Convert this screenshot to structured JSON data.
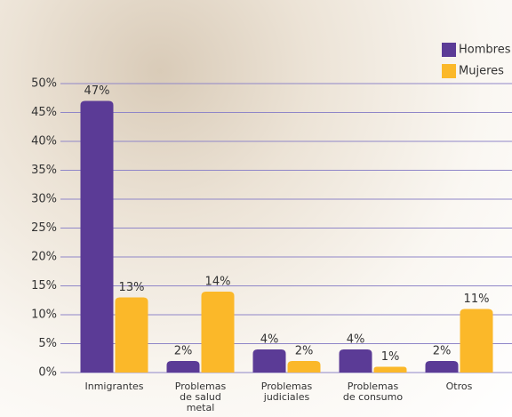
{
  "chart_data": {
    "type": "bar",
    "categories": [
      "Inmigrantes",
      "Problemas de salud metal",
      "Problemas judiciales",
      "Problemas de consumo",
      "Otros"
    ],
    "series": [
      {
        "name": "Hombres",
        "color": "#5b3b96",
        "values": [
          47,
          2,
          4,
          4,
          2
        ],
        "value_labels": [
          "47%",
          "2%",
          "4%",
          "4%",
          "2%"
        ]
      },
      {
        "name": "Mujeres",
        "color": "#fbb829",
        "values": [
          13,
          14,
          2,
          1,
          11
        ],
        "value_labels": [
          "13%",
          "14%",
          "2%",
          "1%",
          "11%"
        ]
      }
    ],
    "ylim": [
      0,
      50
    ],
    "yticks": [
      {
        "value": 0,
        "label": "0%"
      },
      {
        "value": 5,
        "label": "5%"
      },
      {
        "value": 10,
        "label": "10%"
      },
      {
        "value": 15,
        "label": "15%"
      },
      {
        "value": 20,
        "label": "20%"
      },
      {
        "value": 25,
        "label": "25%"
      },
      {
        "value": 30,
        "label": "30%"
      },
      {
        "value": 35,
        "label": "35%"
      },
      {
        "value": 40,
        "label": "40%"
      },
      {
        "value": 45,
        "label": "45%"
      },
      {
        "value": 50,
        "label": "50%"
      }
    ],
    "grid": true,
    "legend": "top-right"
  }
}
